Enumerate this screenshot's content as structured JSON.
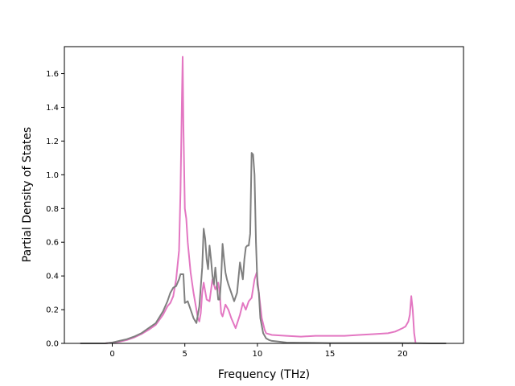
{
  "chart_data": {
    "type": "line",
    "title": "",
    "xlabel": "Frequency (THz)",
    "ylabel": "Partial Density of States",
    "xlim": [
      -3.3,
      24.2
    ],
    "ylim": [
      0,
      1.76
    ],
    "xticks": [
      0,
      5,
      10,
      15,
      20
    ],
    "xtick_labels": [
      "0",
      "5",
      "10",
      "15",
      "20"
    ],
    "yticks": [
      0.0,
      0.2,
      0.4,
      0.6,
      0.8,
      1.0,
      1.2,
      1.4,
      1.6
    ],
    "ytick_labels": [
      "0.0",
      "0.2",
      "0.4",
      "0.6",
      "0.8",
      "1.0",
      "1.2",
      "1.4",
      "1.6"
    ],
    "grid": false,
    "legend": false,
    "series": [
      {
        "color": "#e377c2",
        "x": [
          -2.2,
          -0.5,
          0,
          0.5,
          1,
          1.5,
          2,
          2.5,
          3,
          3.5,
          3.8,
          4.0,
          4.2,
          4.4,
          4.6,
          4.7,
          4.8,
          4.85,
          4.9,
          5.0,
          5.1,
          5.2,
          5.4,
          5.6,
          5.8,
          5.9,
          6.0,
          6.1,
          6.2,
          6.3,
          6.5,
          6.7,
          6.9,
          7.1,
          7.3,
          7.4,
          7.5,
          7.6,
          7.8,
          8.0,
          8.2,
          8.5,
          8.8,
          9.0,
          9.2,
          9.4,
          9.6,
          9.8,
          9.95,
          10.1,
          10.3,
          10.5,
          10.6,
          11.0,
          12.0,
          13.0,
          14.0,
          15.0,
          16.0,
          17.0,
          18.0,
          19.0,
          19.5,
          20.0,
          20.2,
          20.4,
          20.5,
          20.6,
          20.7,
          20.8,
          20.9
        ],
        "y": [
          0,
          0.0,
          0.005,
          0.01,
          0.02,
          0.035,
          0.055,
          0.08,
          0.11,
          0.17,
          0.22,
          0.24,
          0.28,
          0.38,
          0.55,
          0.9,
          1.45,
          1.7,
          1.3,
          0.8,
          0.74,
          0.6,
          0.42,
          0.3,
          0.2,
          0.15,
          0.13,
          0.18,
          0.3,
          0.36,
          0.26,
          0.25,
          0.38,
          0.32,
          0.36,
          0.3,
          0.18,
          0.16,
          0.23,
          0.2,
          0.15,
          0.09,
          0.17,
          0.24,
          0.2,
          0.25,
          0.27,
          0.38,
          0.42,
          0.3,
          0.15,
          0.08,
          0.06,
          0.05,
          0.045,
          0.04,
          0.045,
          0.045,
          0.045,
          0.05,
          0.055,
          0.06,
          0.07,
          0.09,
          0.1,
          0.13,
          0.17,
          0.28,
          0.2,
          0.06,
          0.0
        ]
      },
      {
        "color": "#7f7f7f",
        "x": [
          -2.2,
          -0.5,
          0,
          0.5,
          1,
          1.5,
          2,
          2.5,
          3,
          3.5,
          3.8,
          4.0,
          4.2,
          4.4,
          4.5,
          4.6,
          4.7,
          4.8,
          4.9,
          5.0,
          5.2,
          5.4,
          5.6,
          5.8,
          6.0,
          6.2,
          6.3,
          6.4,
          6.5,
          6.6,
          6.7,
          6.8,
          6.9,
          7.0,
          7.1,
          7.3,
          7.4,
          7.5,
          7.6,
          7.7,
          7.8,
          7.9,
          8.0,
          8.2,
          8.4,
          8.6,
          8.8,
          9.0,
          9.1,
          9.2,
          9.3,
          9.4,
          9.5,
          9.6,
          9.7,
          9.8,
          9.9,
          10.0,
          10.1,
          10.2,
          10.4,
          10.6,
          10.8,
          11.0,
          11.5,
          12.0,
          13.0,
          14.0,
          15.0,
          16.0,
          17.0,
          18.0,
          19.0,
          20.0,
          21.0,
          22.0,
          23.0
        ],
        "y": [
          0,
          0.0,
          0.005,
          0.015,
          0.025,
          0.04,
          0.06,
          0.09,
          0.12,
          0.19,
          0.25,
          0.3,
          0.33,
          0.34,
          0.36,
          0.38,
          0.41,
          0.41,
          0.41,
          0.24,
          0.25,
          0.2,
          0.15,
          0.12,
          0.22,
          0.45,
          0.68,
          0.62,
          0.5,
          0.44,
          0.58,
          0.5,
          0.4,
          0.35,
          0.45,
          0.26,
          0.26,
          0.38,
          0.59,
          0.5,
          0.42,
          0.38,
          0.35,
          0.3,
          0.25,
          0.3,
          0.48,
          0.38,
          0.5,
          0.57,
          0.58,
          0.58,
          0.65,
          1.13,
          1.12,
          1.0,
          0.6,
          0.35,
          0.3,
          0.15,
          0.06,
          0.03,
          0.02,
          0.015,
          0.01,
          0.005,
          0.004,
          0.003,
          0.002,
          0.002,
          0.002,
          0.002,
          0.002,
          0.002,
          0.001,
          0.0,
          0.0
        ]
      }
    ]
  }
}
